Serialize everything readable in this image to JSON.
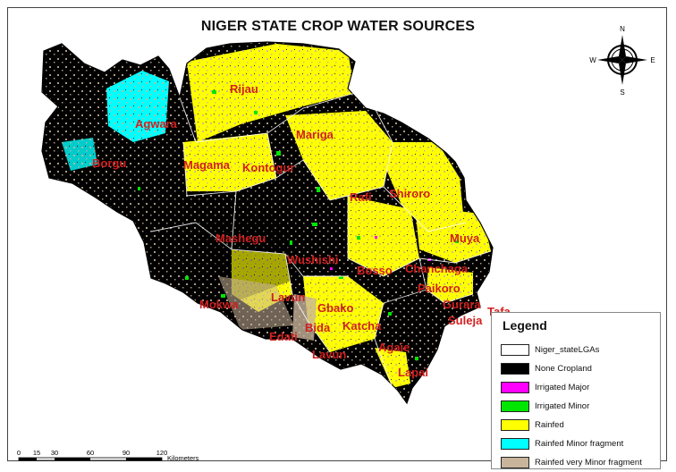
{
  "map": {
    "title": "NIGER STATE CROP WATER SOURCES",
    "lga_labels": [
      "Rijau",
      "Agwara",
      "Borgu",
      "Mariga",
      "Magama",
      "Kontogur",
      "Rafi",
      "Shiroro",
      "Mashegu",
      "Muya",
      "Wushishi",
      "Bosso",
      "Chanchaga",
      "Paikoro",
      "Gurara",
      "Tafa",
      "Suleja",
      "Mokwa",
      "Lavun",
      "Gbako",
      "Bida",
      "Edati",
      "Katcha",
      "Lapai",
      "Agaie",
      "Lavun"
    ]
  },
  "legend": {
    "title": "Legend",
    "items": [
      {
        "label": "Niger_stateLGAs",
        "color": "#ffffff"
      },
      {
        "label": "None Cropland",
        "color": "#000000"
      },
      {
        "label": "Irrigated Major",
        "color": "#ff00ff"
      },
      {
        "label": "Irrigated Minor",
        "color": "#00e600"
      },
      {
        "label": "Rainfed",
        "color": "#ffff00"
      },
      {
        "label": "Rainfed Minor fragment",
        "color": "#00ffff"
      },
      {
        "label": "Rainfed very Minor fragment",
        "color": "#c8b49b"
      }
    ]
  },
  "scale_bar": {
    "ticks": [
      "0",
      "15",
      "30",
      "60",
      "90",
      "120"
    ],
    "tick_values": [
      0,
      15,
      30,
      60,
      90,
      120
    ],
    "unit": "Kilometers"
  },
  "north_arrow": {
    "n": "N",
    "s": "S",
    "e": "E",
    "w": "W"
  },
  "colors": {
    "label_red": "#d11f1f",
    "rainfed_yellow": "#ffff00",
    "noncrop_black": "#000000"
  }
}
